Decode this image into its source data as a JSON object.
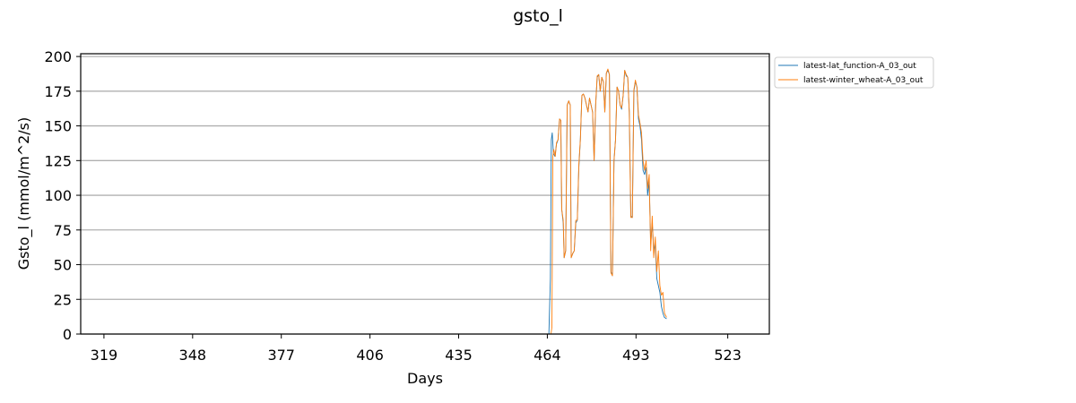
{
  "chart_data": {
    "type": "line",
    "title": "gsto_l",
    "xlabel": "Days",
    "ylabel": "Gsto_l (mmol/m^2/s)",
    "xlim": [
      311.4,
      536.6
    ],
    "ylim": [
      0,
      202
    ],
    "xticks": [
      319,
      348,
      377,
      406,
      435,
      464,
      493,
      523
    ],
    "yticks": [
      0,
      25,
      50,
      75,
      100,
      125,
      150,
      175,
      200
    ],
    "grid": "horizontal",
    "legend_position": "outside-top-right",
    "series": [
      {
        "name": "latest-lat_function-A_03_out",
        "color": "#1f77b4",
        "points": [
          [
            464.5,
            0
          ],
          [
            465.0,
            40
          ],
          [
            465.3,
            140
          ],
          [
            465.6,
            145
          ],
          [
            466.0,
            130
          ],
          [
            466.5,
            128
          ],
          [
            467.0,
            137
          ],
          [
            467.5,
            140
          ],
          [
            468.0,
            155
          ],
          [
            468.4,
            154
          ],
          [
            468.7,
            90
          ],
          [
            469.2,
            80
          ],
          [
            469.5,
            55
          ],
          [
            470.0,
            60
          ],
          [
            470.5,
            165
          ],
          [
            471.0,
            168
          ],
          [
            471.5,
            165
          ],
          [
            471.8,
            55
          ],
          [
            472.3,
            58
          ],
          [
            472.8,
            60
          ],
          [
            473.3,
            80
          ],
          [
            473.8,
            82
          ],
          [
            474.3,
            120
          ],
          [
            474.8,
            140
          ],
          [
            475.3,
            172
          ],
          [
            475.8,
            173
          ],
          [
            476.3,
            170
          ],
          [
            476.8,
            165
          ],
          [
            477.3,
            160
          ],
          [
            477.8,
            170
          ],
          [
            478.3,
            165
          ],
          [
            478.8,
            160
          ],
          [
            479.3,
            125
          ],
          [
            479.8,
            165
          ],
          [
            480.3,
            185
          ],
          [
            480.8,
            187
          ],
          [
            481.3,
            175
          ],
          [
            481.8,
            185
          ],
          [
            482.3,
            182
          ],
          [
            482.8,
            160
          ],
          [
            483.3,
            188
          ],
          [
            483.8,
            190
          ],
          [
            484.3,
            187
          ],
          [
            484.8,
            45
          ],
          [
            485.3,
            42
          ],
          [
            485.8,
            125
          ],
          [
            486.3,
            140
          ],
          [
            486.8,
            178
          ],
          [
            487.3,
            175
          ],
          [
            487.8,
            165
          ],
          [
            488.3,
            162
          ],
          [
            488.8,
            172
          ],
          [
            489.3,
            190
          ],
          [
            489.8,
            186
          ],
          [
            490.3,
            185
          ],
          [
            490.8,
            160
          ],
          [
            491.3,
            85
          ],
          [
            491.8,
            84
          ],
          [
            492.3,
            175
          ],
          [
            492.8,
            182
          ],
          [
            493.3,
            178
          ],
          [
            493.8,
            155
          ],
          [
            494.3,
            150
          ],
          [
            494.8,
            140
          ],
          [
            495.3,
            118
          ],
          [
            495.8,
            115
          ],
          [
            496.3,
            120
          ],
          [
            496.8,
            100
          ],
          [
            497.3,
            110
          ],
          [
            497.8,
            65
          ],
          [
            498.3,
            80
          ],
          [
            498.8,
            60
          ],
          [
            499.3,
            65
          ],
          [
            499.8,
            40
          ],
          [
            500.3,
            35
          ],
          [
            500.8,
            30
          ],
          [
            501.3,
            20
          ],
          [
            501.8,
            15
          ],
          [
            502.3,
            12
          ],
          [
            503.0,
            11
          ]
        ]
      },
      {
        "name": "latest-winter_wheat-A_03_out",
        "color": "#ff7f0e",
        "points": [
          [
            465.2,
            0
          ],
          [
            465.5,
            5
          ],
          [
            465.8,
            128
          ],
          [
            466.1,
            133
          ],
          [
            466.6,
            128
          ],
          [
            467.0,
            138
          ],
          [
            467.5,
            140
          ],
          [
            468.0,
            155
          ],
          [
            468.4,
            154
          ],
          [
            468.7,
            90
          ],
          [
            469.2,
            82
          ],
          [
            469.5,
            55
          ],
          [
            470.0,
            60
          ],
          [
            470.5,
            165
          ],
          [
            471.0,
            168
          ],
          [
            471.5,
            165
          ],
          [
            471.8,
            55
          ],
          [
            472.3,
            58
          ],
          [
            472.8,
            60
          ],
          [
            473.3,
            82
          ],
          [
            473.8,
            82
          ],
          [
            474.3,
            122
          ],
          [
            474.8,
            140
          ],
          [
            475.3,
            172
          ],
          [
            475.8,
            173
          ],
          [
            476.3,
            170
          ],
          [
            476.8,
            165
          ],
          [
            477.3,
            160
          ],
          [
            477.8,
            170
          ],
          [
            478.3,
            165
          ],
          [
            478.8,
            160
          ],
          [
            479.3,
            125
          ],
          [
            479.8,
            165
          ],
          [
            480.3,
            186
          ],
          [
            480.8,
            187
          ],
          [
            481.3,
            175
          ],
          [
            481.8,
            185
          ],
          [
            482.3,
            182
          ],
          [
            482.8,
            160
          ],
          [
            483.3,
            188
          ],
          [
            483.8,
            191
          ],
          [
            484.3,
            187
          ],
          [
            484.8,
            44
          ],
          [
            485.3,
            42
          ],
          [
            485.8,
            125
          ],
          [
            486.3,
            140
          ],
          [
            486.8,
            178
          ],
          [
            487.3,
            175
          ],
          [
            487.8,
            165
          ],
          [
            488.3,
            163
          ],
          [
            488.8,
            172
          ],
          [
            489.3,
            190
          ],
          [
            489.8,
            187
          ],
          [
            490.3,
            185
          ],
          [
            490.8,
            160
          ],
          [
            491.3,
            84
          ],
          [
            491.8,
            84
          ],
          [
            492.3,
            176
          ],
          [
            492.8,
            183
          ],
          [
            493.3,
            178
          ],
          [
            493.8,
            158
          ],
          [
            494.3,
            152
          ],
          [
            494.8,
            145
          ],
          [
            495.3,
            125
          ],
          [
            495.8,
            118
          ],
          [
            496.3,
            125
          ],
          [
            496.8,
            105
          ],
          [
            497.3,
            115
          ],
          [
            497.8,
            60
          ],
          [
            498.3,
            85
          ],
          [
            498.8,
            55
          ],
          [
            499.3,
            70
          ],
          [
            499.8,
            45
          ],
          [
            500.3,
            60
          ],
          [
            500.8,
            35
          ],
          [
            501.3,
            28
          ],
          [
            501.8,
            30
          ],
          [
            502.3,
            15
          ],
          [
            503.0,
            12
          ]
        ]
      }
    ]
  }
}
